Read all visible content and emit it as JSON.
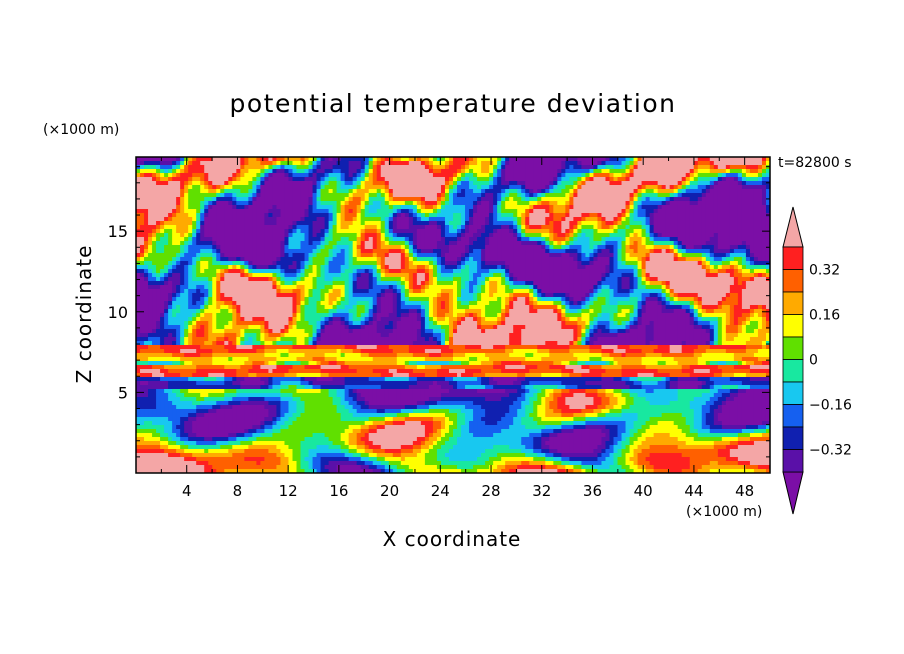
{
  "chart_data": {
    "type": "heatmap",
    "title": "potential temperature deviation",
    "xlabel": "X coordinate",
    "ylabel": "Z coordinate",
    "x_unit": "(×1000 m)",
    "y_unit": "(×1000 m)",
    "time_label": "t=82800 s",
    "xlim": [
      0,
      50
    ],
    "ylim": [
      0,
      19.6
    ],
    "x_ticks": [
      4,
      8,
      12,
      16,
      20,
      24,
      28,
      32,
      36,
      40,
      44,
      48
    ],
    "x_tick_labels": [
      "4",
      "8",
      "12",
      "16",
      "20",
      "24",
      "28",
      "32",
      "36",
      "40",
      "44",
      "48"
    ],
    "y_ticks": [
      5,
      10,
      15
    ],
    "y_tick_labels": [
      "5",
      "10",
      "15"
    ],
    "colorbar": {
      "levels": [
        -0.4,
        -0.32,
        -0.24,
        -0.16,
        -0.08,
        0,
        0.08,
        0.16,
        0.24,
        0.32,
        0.4
      ],
      "tick_values": [
        0.32,
        0.16,
        0,
        -0.16,
        -0.32
      ],
      "tick_labels": [
        "0.32",
        "0.16",
        "0",
        "−0.16",
        "−0.32"
      ],
      "extend": "both",
      "colors": [
        "#7b0ea6",
        "#5a10a8",
        "#1020b0",
        "#1560f0",
        "#18c8f0",
        "#18e8a0",
        "#60e000",
        "#ffff00",
        "#ffaa00",
        "#ff6000",
        "#ff2020",
        "#f4a6a6"
      ]
    }
  }
}
